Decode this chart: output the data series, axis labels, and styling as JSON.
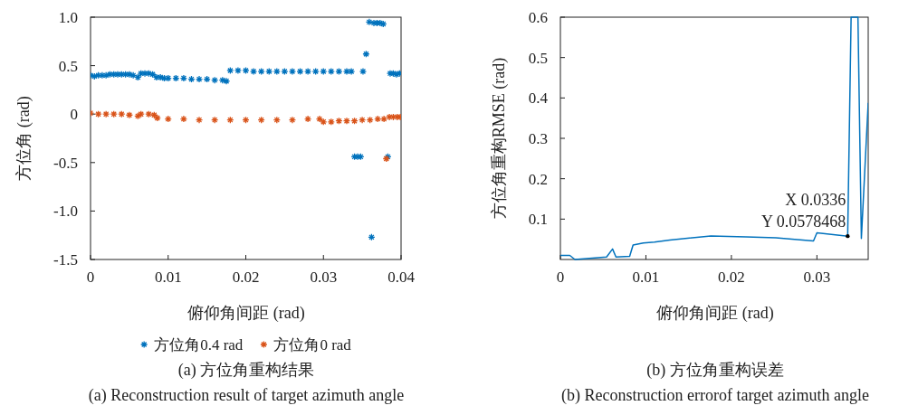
{
  "chart_data": [
    {
      "type": "scatter",
      "title": "(a) 方位角重构结果",
      "subtitle": "(a) Reconstruction result of target azimuth angle",
      "xlabel": "俯仰角间距 (rad)",
      "ylabel": "方位角 (rad)",
      "xlim": [
        0,
        0.04
      ],
      "ylim": [
        -1.5,
        1.0
      ],
      "xticks": [
        0,
        0.01,
        0.02,
        0.03,
        0.04
      ],
      "yticks": [
        {
          "value": -1.5,
          "label": "-1.5"
        },
        {
          "value": -1.0,
          "label": "-1.0"
        },
        -0.5,
        0,
        0.5,
        {
          "value": 1.0,
          "label": "1.0"
        }
      ],
      "marker": "cross",
      "legend": "bottom",
      "series": [
        {
          "name": "方位角0.4 rad",
          "color": "#0072bd",
          "x": [
            0,
            0.0005,
            0.001,
            0.0015,
            0.002,
            0.0025,
            0.003,
            0.0035,
            0.004,
            0.0045,
            0.005,
            0.0055,
            0.0061,
            0.0065,
            0.007,
            0.0075,
            0.008,
            0.0085,
            0.009,
            0.0095,
            0.01,
            0.011,
            0.012,
            0.013,
            0.014,
            0.015,
            0.016,
            0.017,
            0.0175,
            0.018,
            0.019,
            0.02,
            0.021,
            0.022,
            0.023,
            0.024,
            0.025,
            0.026,
            0.027,
            0.028,
            0.029,
            0.03,
            0.031,
            0.032,
            0.033,
            0.0336,
            0.034,
            0.0344,
            0.0348,
            0.0351,
            0.0355,
            0.0359,
            0.0362,
            0.0365,
            0.0369,
            0.0373,
            0.0377,
            0.0383,
            0.0386,
            0.039,
            0.0394,
            0.0398
          ],
          "values": [
            0.4,
            0.39,
            0.4,
            0.4,
            0.4,
            0.41,
            0.41,
            0.41,
            0.41,
            0.41,
            0.41,
            0.4,
            0.38,
            0.42,
            0.42,
            0.42,
            0.41,
            0.38,
            0.38,
            0.37,
            0.37,
            0.37,
            0.37,
            0.36,
            0.36,
            0.36,
            0.35,
            0.35,
            0.34,
            0.45,
            0.45,
            0.45,
            0.44,
            0.44,
            0.44,
            0.44,
            0.44,
            0.44,
            0.44,
            0.44,
            0.44,
            0.44,
            0.44,
            0.44,
            0.44,
            0.44,
            -0.44,
            -0.44,
            -0.44,
            0.44,
            0.62,
            0.95,
            -1.27,
            0.94,
            0.94,
            0.94,
            0.93,
            -0.44,
            0.42,
            0.42,
            0.41,
            0.42
          ]
        },
        {
          "name": "方位角0 rad",
          "color": "#d95319",
          "x": [
            0,
            0.001,
            0.002,
            0.003,
            0.004,
            0.005,
            0.0061,
            0.0065,
            0.0075,
            0.0082,
            0.0086,
            0.01,
            0.012,
            0.014,
            0.016,
            0.018,
            0.02,
            0.022,
            0.024,
            0.026,
            0.028,
            0.0295,
            0.03,
            0.031,
            0.032,
            0.033,
            0.034,
            0.035,
            0.036,
            0.037,
            0.0378,
            0.0381,
            0.0385,
            0.039,
            0.0395,
            0.0399
          ],
          "values": [
            0.01,
            0,
            0,
            0,
            0,
            -0.01,
            -0.02,
            0,
            0,
            -0.01,
            -0.04,
            -0.05,
            -0.05,
            -0.06,
            -0.06,
            -0.06,
            -0.06,
            -0.06,
            -0.06,
            -0.06,
            -0.05,
            -0.05,
            -0.08,
            -0.08,
            -0.07,
            -0.07,
            -0.07,
            -0.06,
            -0.06,
            -0.05,
            -0.05,
            -0.46,
            -0.03,
            -0.03,
            -0.03,
            -0.03
          ]
        }
      ]
    },
    {
      "type": "line",
      "title": "(b) 方位角重构误差",
      "subtitle": "(b) Reconstruction errorof target azimuth angle",
      "xlabel": "俯仰角间距 (rad)",
      "ylabel": "方位角重构RMSE (rad)",
      "xlim": [
        0,
        0.036
      ],
      "ylim": [
        0,
        0.6
      ],
      "xticks": [
        0,
        0.01,
        0.02,
        0.03
      ],
      "yticks": [
        0.1,
        0.2,
        0.3,
        0.4,
        0.5,
        0.6
      ],
      "series": [
        {
          "color": "#0072bd",
          "x": [
            0,
            0.0011,
            0.0017,
            0.0054,
            0.0061,
            0.0065,
            0.0081,
            0.0085,
            0.0097,
            0.011,
            0.0128,
            0.0146,
            0.0176,
            0.0217,
            0.0252,
            0.0296,
            0.03,
            0.0336,
            0.034,
            0.0348,
            0.0352,
            0.036
          ],
          "values": [
            0.01,
            0.01,
            0,
            0.006,
            0.026,
            0.006,
            0.008,
            0.036,
            0.041,
            0.043,
            0.048,
            0.052,
            0.058,
            0.056,
            0.054,
            0.046,
            0.066,
            0.0578468,
            0.6,
            0.6,
            0.052,
            0.388
          ]
        }
      ],
      "annotations": [
        {
          "text": "X 0.0336\nY 0.0578468",
          "x": 0.0336,
          "y": 0.0578468
        }
      ]
    }
  ]
}
